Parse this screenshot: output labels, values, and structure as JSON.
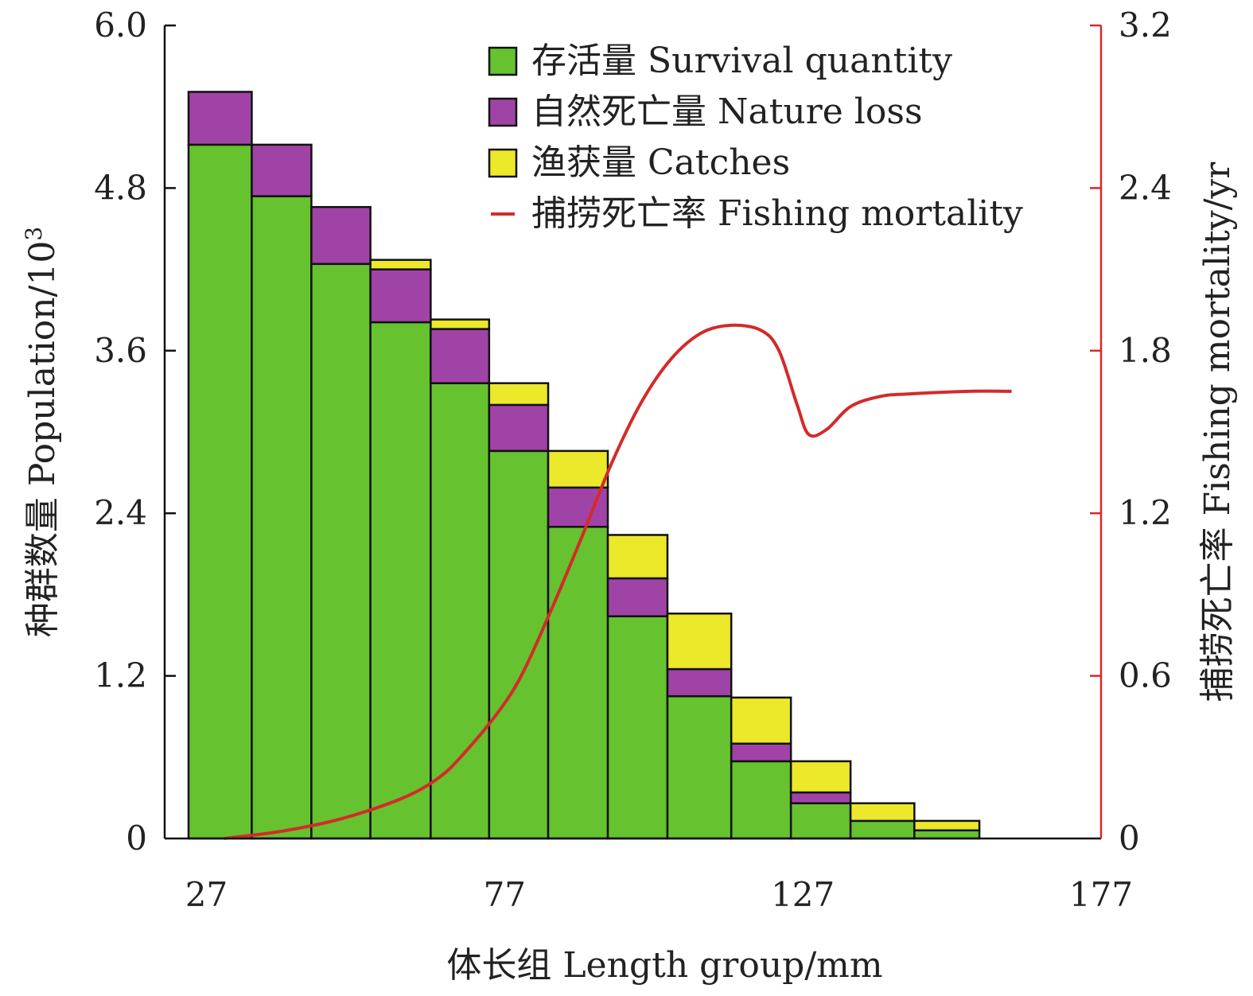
{
  "chart_data": {
    "type": "bar",
    "stacked": true,
    "x_axis": {
      "label": "体长组 Length group/mm",
      "range": [
        20,
        177
      ],
      "ticks": [
        27,
        77,
        127,
        177
      ]
    },
    "y_axis_left": {
      "label": "种群数量 Population/10",
      "label_superscript": "3",
      "range": [
        0,
        6.0
      ],
      "tick_labels": [
        "0",
        "1.2",
        "2.4",
        "3.6",
        "4.8",
        "6.0"
      ]
    },
    "y_axis_right": {
      "label": "捕捞死亡率 Fishing mortality/yr",
      "range": [
        0,
        3.2
      ],
      "tick_labels": [
        "0",
        "0.6",
        "1.2",
        "1.8",
        "2.4",
        "3.2"
      ],
      "color": "#d42a2a"
    },
    "bins": [
      {
        "from": 24.0,
        "to": 34.6
      },
      {
        "from": 34.6,
        "to": 44.6
      },
      {
        "from": 44.6,
        "to": 54.5
      },
      {
        "from": 54.5,
        "to": 64.6
      },
      {
        "from": 64.6,
        "to": 74.4
      },
      {
        "from": 74.4,
        "to": 84.3
      },
      {
        "from": 84.3,
        "to": 94.3
      },
      {
        "from": 94.3,
        "to": 104.3
      },
      {
        "from": 104.3,
        "to": 115.0
      },
      {
        "from": 115.0,
        "to": 125.0
      },
      {
        "from": 125.0,
        "to": 135.0
      },
      {
        "from": 135.0,
        "to": 145.7
      },
      {
        "from": 145.7,
        "to": 156.6
      }
    ],
    "series": [
      {
        "name": "存活量 Survival quantity",
        "color": "#66c22e",
        "values": [
          5.12,
          4.74,
          4.24,
          3.81,
          3.36,
          2.86,
          2.3,
          1.64,
          1.05,
          0.57,
          0.26,
          0.13,
          0.06
        ]
      },
      {
        "name": "自然死亡量 Nature loss",
        "color": "#a043a6",
        "values": [
          0.39,
          0.38,
          0.42,
          0.39,
          0.4,
          0.34,
          0.29,
          0.28,
          0.2,
          0.13,
          0.08,
          0.0,
          0.0
        ]
      },
      {
        "name": "渔获量 Catches",
        "color": "#ece82a",
        "values": [
          0.0,
          0.0,
          0.0,
          0.07,
          0.07,
          0.16,
          0.27,
          0.32,
          0.41,
          0.34,
          0.23,
          0.13,
          0.07
        ]
      }
    ],
    "line": {
      "name": "捕捞死亡率 Fishing mortality",
      "color": "#d42a2a",
      "axis": "right",
      "points": [
        [
          30,
          0.0
        ],
        [
          40,
          0.03
        ],
        [
          50,
          0.08
        ],
        [
          60,
          0.16
        ],
        [
          66,
          0.24
        ],
        [
          70,
          0.33
        ],
        [
          76,
          0.5
        ],
        [
          80,
          0.65
        ],
        [
          85,
          0.91
        ],
        [
          90,
          1.19
        ],
        [
          95,
          1.48
        ],
        [
          100,
          1.72
        ],
        [
          105,
          1.89
        ],
        [
          110,
          1.99
        ],
        [
          115,
          2.02
        ],
        [
          120,
          2.0
        ],
        [
          123,
          1.92
        ],
        [
          126,
          1.71
        ],
        [
          128,
          1.59
        ],
        [
          131,
          1.61
        ],
        [
          135,
          1.7
        ],
        [
          140,
          1.74
        ],
        [
          145,
          1.75
        ],
        [
          155,
          1.76
        ],
        [
          162,
          1.76
        ]
      ]
    },
    "legend": {
      "position": "top-right",
      "items": [
        {
          "label": "存活量 Survival quantity",
          "kind": "box",
          "color": "#66c22e"
        },
        {
          "label": "自然死亡量 Nature loss",
          "kind": "box",
          "color": "#a043a6"
        },
        {
          "label": "渔获量 Catches",
          "kind": "box",
          "color": "#ece82a"
        },
        {
          "label": "捕捞死亡率 Fishing mortality",
          "kind": "line",
          "color": "#d42a2a"
        }
      ]
    },
    "grid": false
  }
}
